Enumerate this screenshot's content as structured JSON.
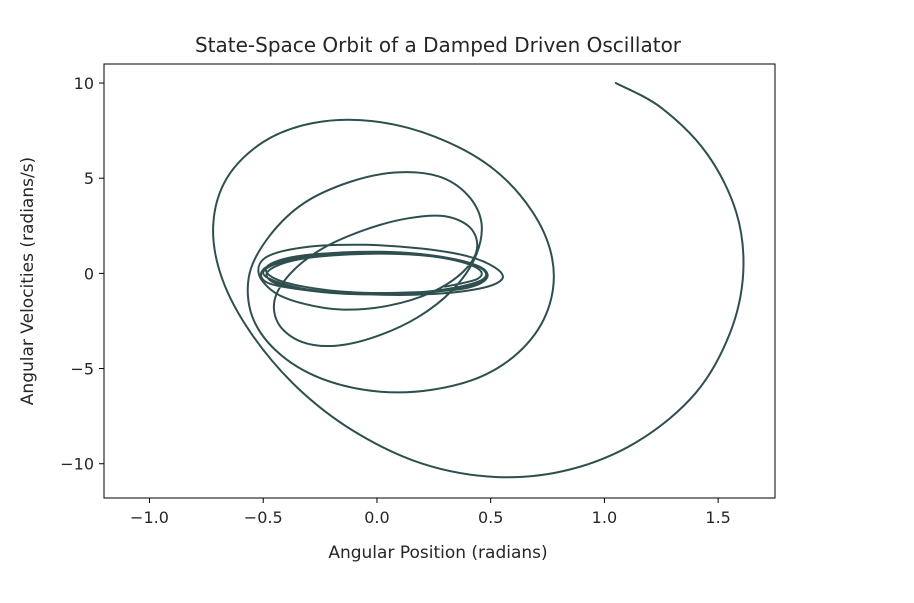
{
  "chart_data": {
    "type": "line",
    "title": "State-Space Orbit of a Damped Driven Oscillator",
    "xlabel": "Angular Position (radians)",
    "ylabel": "Angular Velocities (radians/s)",
    "xlim": [
      -1.2,
      1.75
    ],
    "ylim": [
      -11.8,
      11.0
    ],
    "xticks": [
      -1.0,
      -0.5,
      0.0,
      0.5,
      1.0,
      1.5
    ],
    "xtick_labels": [
      "−1.0",
      "−0.5",
      "0.0",
      "0.5",
      "1.0",
      "1.5"
    ],
    "yticks": [
      10,
      5,
      0,
      -5,
      -10
    ],
    "ytick_labels": [
      "10",
      "5",
      "0",
      "−5",
      "−10"
    ],
    "grid": false,
    "legend": "none",
    "line_color": "#2f4f4f",
    "series": [
      {
        "description_points": "traced trajectory (x: angular position, y: angular velocity)",
        "x": [
          1.05,
          1.25,
          1.45,
          1.58,
          1.61,
          1.55,
          1.4,
          1.15,
          0.85,
          0.53,
          0.2,
          -0.1,
          -0.35,
          -0.55,
          -0.68,
          -0.72,
          -0.66,
          -0.5,
          -0.28,
          -0.02,
          0.25,
          0.5,
          0.68,
          0.77,
          0.76,
          0.66,
          0.48,
          0.25,
          0.0,
          -0.25,
          -0.44,
          -0.55,
          -0.56,
          -0.47,
          -0.32,
          -0.12,
          0.08,
          0.27,
          0.4,
          0.46,
          0.43,
          0.33,
          0.18,
          0.0,
          -0.18,
          -0.33,
          -0.43,
          -0.45,
          -0.38,
          -0.24,
          -0.05,
          0.14,
          0.3,
          0.41,
          0.44,
          0.38,
          0.24,
          0.05,
          -0.15,
          -0.32,
          -0.45,
          -0.52,
          -0.48,
          -0.3,
          -0.05,
          0.2,
          0.4,
          0.52,
          0.55,
          0.45,
          0.22,
          -0.05,
          -0.3,
          -0.48,
          -0.5,
          -0.38,
          -0.15,
          0.1,
          0.32,
          0.46,
          0.48,
          0.38,
          0.15,
          -0.1,
          -0.32,
          -0.46,
          -0.48,
          -0.35,
          -0.1,
          0.15,
          0.35,
          0.47,
          0.46,
          0.3,
          0.05,
          -0.2,
          -0.4,
          -0.5,
          -0.42,
          -0.22,
          0.02,
          0.25,
          0.42,
          0.48,
          0.4,
          0.18,
          -0.08,
          -0.3,
          -0.45,
          -0.48,
          -0.36,
          -0.12,
          0.14,
          0.34,
          0.45,
          0.44,
          0.3
        ],
        "y": [
          10.0,
          8.7,
          6.3,
          3.2,
          0.0,
          -3.2,
          -6.3,
          -8.8,
          -10.3,
          -10.7,
          -10.0,
          -8.3,
          -6.0,
          -3.2,
          -0.3,
          2.5,
          5.0,
          6.9,
          7.9,
          8.0,
          7.2,
          5.6,
          3.3,
          0.8,
          -1.6,
          -3.7,
          -5.3,
          -6.1,
          -6.2,
          -5.5,
          -4.1,
          -2.2,
          0.0,
          2.0,
          3.7,
          4.8,
          5.3,
          5.1,
          4.1,
          2.6,
          0.8,
          -0.9,
          -2.3,
          -3.3,
          -3.8,
          -3.6,
          -2.7,
          -1.4,
          0.0,
          1.3,
          2.3,
          2.9,
          3.0,
          2.4,
          1.3,
          0.1,
          -1.0,
          -1.7,
          -1.9,
          -1.6,
          -1.0,
          0.0,
          0.9,
          1.4,
          1.5,
          1.3,
          0.9,
          0.3,
          -0.3,
          -0.8,
          -1.1,
          -1.1,
          -0.9,
          -0.5,
          0.2,
          0.8,
          1.1,
          1.1,
          0.8,
          0.3,
          -0.3,
          -0.8,
          -1.0,
          -1.0,
          -0.7,
          -0.2,
          0.4,
          0.9,
          1.1,
          1.0,
          0.7,
          0.2,
          -0.4,
          -0.9,
          -1.1,
          -1.0,
          -0.6,
          0.0,
          0.6,
          1.0,
          1.1,
          0.9,
          0.5,
          -0.1,
          -0.6,
          -1.0,
          -1.1,
          -0.9,
          -0.5,
          0.1,
          0.7,
          1.0,
          1.0,
          0.7,
          0.2,
          -0.3,
          -0.7
        ]
      }
    ]
  }
}
